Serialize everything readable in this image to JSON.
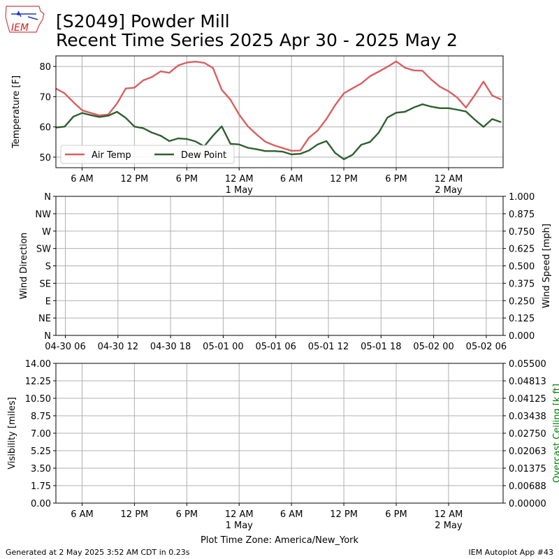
{
  "title": {
    "line1": "[S2049] Powder Mill",
    "line2": "Recent Time Series 2025 Apr 30 - 2025 May 2"
  },
  "logo_text": "IEM",
  "footer": {
    "left": "Generated at 2 May 2025 3:52 AM CDT in 0.23s",
    "right": "IEM Autoplot App #43"
  },
  "xlabel": "Plot Time Zone: America/New_York",
  "colors": {
    "air_temp": "#d95f5f",
    "dew_point": "#2f5f2f",
    "ceiling_label": "#008000"
  },
  "chart_data": [
    {
      "type": "line",
      "ylabel": "Temperature [F]",
      "ylim": [
        46.5,
        83.5
      ],
      "yticks": [
        50,
        60,
        70,
        80
      ],
      "xlim": [
        3.0,
        54.25
      ],
      "x_unit": "hours since 2025-04-30 00:00 America/New_York",
      "xticks": [
        {
          "x": 6,
          "label": "6 AM",
          "sub": ""
        },
        {
          "x": 12,
          "label": "12 PM",
          "sub": ""
        },
        {
          "x": 18,
          "label": "6 PM",
          "sub": ""
        },
        {
          "x": 24,
          "label": "12 AM",
          "sub": "1 May"
        },
        {
          "x": 30,
          "label": "6 AM",
          "sub": ""
        },
        {
          "x": 36,
          "label": "12 PM",
          "sub": ""
        },
        {
          "x": 42,
          "label": "6 PM",
          "sub": ""
        },
        {
          "x": 48,
          "label": "12 AM",
          "sub": "2 May"
        }
      ],
      "grid": true,
      "legend_position": "lower-left",
      "series": [
        {
          "name": "Air Temp",
          "color": "#d95f5f",
          "points": [
            [
              3,
              72.7
            ],
            [
              4,
              71.1
            ],
            [
              5,
              68.2
            ],
            [
              6,
              65.5
            ],
            [
              7,
              64.6
            ],
            [
              8,
              63.8
            ],
            [
              9,
              64.1
            ],
            [
              10,
              67.7
            ],
            [
              11,
              72.7
            ],
            [
              12,
              73.0
            ],
            [
              13,
              75.4
            ],
            [
              14,
              76.5
            ],
            [
              15,
              78.4
            ],
            [
              16,
              77.9
            ],
            [
              17,
              80.3
            ],
            [
              18,
              81.3
            ],
            [
              19,
              81.6
            ],
            [
              20,
              81.2
            ],
            [
              21,
              79.5
            ],
            [
              22,
              72.3
            ],
            [
              23,
              69.0
            ],
            [
              24,
              64.1
            ],
            [
              25,
              60.2
            ],
            [
              26,
              57.5
            ],
            [
              27,
              55.1
            ],
            [
              28,
              53.9
            ],
            [
              29,
              53.0
            ],
            [
              30,
              52.1
            ],
            [
              31,
              52.2
            ],
            [
              32,
              56.4
            ],
            [
              33,
              58.8
            ],
            [
              34,
              62.6
            ],
            [
              35,
              67.2
            ],
            [
              36,
              71.1
            ],
            [
              37,
              72.8
            ],
            [
              38,
              74.4
            ],
            [
              39,
              76.8
            ],
            [
              40,
              78.3
            ],
            [
              41,
              79.9
            ],
            [
              42,
              81.7
            ],
            [
              43,
              79.6
            ],
            [
              44,
              78.7
            ],
            [
              45,
              78.6
            ],
            [
              46,
              75.7
            ],
            [
              47,
              73.3
            ],
            [
              48,
              71.8
            ],
            [
              49,
              69.7
            ],
            [
              50,
              66.4
            ],
            [
              51,
              70.5
            ],
            [
              52,
              75.0
            ],
            [
              53,
              70.4
            ],
            [
              54,
              69.1
            ]
          ]
        },
        {
          "name": "Dew Point",
          "color": "#2f5f2f",
          "points": [
            [
              3,
              59.8
            ],
            [
              4,
              60.1
            ],
            [
              5,
              63.4
            ],
            [
              6,
              64.6
            ],
            [
              7,
              63.9
            ],
            [
              8,
              63.3
            ],
            [
              9,
              63.7
            ],
            [
              10,
              65.0
            ],
            [
              11,
              63.0
            ],
            [
              12,
              60.1
            ],
            [
              13,
              59.6
            ],
            [
              14,
              58.1
            ],
            [
              15,
              57.1
            ],
            [
              16,
              55.3
            ],
            [
              17,
              56.2
            ],
            [
              18,
              56.0
            ],
            [
              19,
              55.2
            ],
            [
              20,
              53.6
            ],
            [
              21,
              57.1
            ],
            [
              22,
              60.2
            ],
            [
              23,
              54.4
            ],
            [
              24,
              54.2
            ],
            [
              25,
              53.1
            ],
            [
              26,
              52.6
            ],
            [
              27,
              52.0
            ],
            [
              28,
              52.0
            ],
            [
              29,
              51.8
            ],
            [
              30,
              50.9
            ],
            [
              31,
              51.1
            ],
            [
              32,
              52.2
            ],
            [
              33,
              54.2
            ],
            [
              34,
              55.3
            ],
            [
              35,
              51.4
            ],
            [
              36,
              49.3
            ],
            [
              37,
              50.8
            ],
            [
              38,
              54.1
            ],
            [
              39,
              55.0
            ],
            [
              40,
              58.1
            ],
            [
              41,
              63.1
            ],
            [
              42,
              64.7
            ],
            [
              43,
              65.0
            ],
            [
              44,
              66.4
            ],
            [
              45,
              67.5
            ],
            [
              46,
              66.7
            ],
            [
              47,
              66.2
            ],
            [
              48,
              66.2
            ],
            [
              49,
              65.7
            ],
            [
              50,
              65.1
            ],
            [
              51,
              62.4
            ],
            [
              52,
              60.0
            ],
            [
              53,
              62.6
            ],
            [
              54,
              61.6
            ]
          ]
        }
      ]
    },
    {
      "type": "line",
      "ylabel": "Wind Direction",
      "y2label": "Wind Speed [mph]",
      "yticks": [
        "N",
        "NE",
        "E",
        "SE",
        "S",
        "SW",
        "W",
        "NW",
        "N"
      ],
      "y2lim": [
        0.0,
        1.0
      ],
      "y2ticks": [
        "0.000",
        "0.125",
        "0.250",
        "0.375",
        "0.500",
        "0.625",
        "0.750",
        "0.875",
        "1.000"
      ],
      "xticks": [
        "04-30 06",
        "04-30 12",
        "04-30 18",
        "05-01 00",
        "05-01 06",
        "05-01 12",
        "05-01 18",
        "05-02 00",
        "05-02 06"
      ],
      "grid": true,
      "series": []
    },
    {
      "type": "line",
      "ylabel": "Visibility [miles]",
      "y2label": "Overcast Ceiling [k ft]",
      "ylim": [
        0.0,
        14.0
      ],
      "yticks": [
        "0.00",
        "1.75",
        "3.50",
        "5.25",
        "7.00",
        "8.75",
        "10.50",
        "12.25",
        "14.00"
      ],
      "y2lim": [
        0.0,
        0.055
      ],
      "y2ticks": [
        "0.00000",
        "0.00688",
        "0.01375",
        "0.02063",
        "0.02750",
        "0.03438",
        "0.04125",
        "0.04813",
        "0.05500"
      ],
      "grid": true,
      "series": []
    }
  ]
}
